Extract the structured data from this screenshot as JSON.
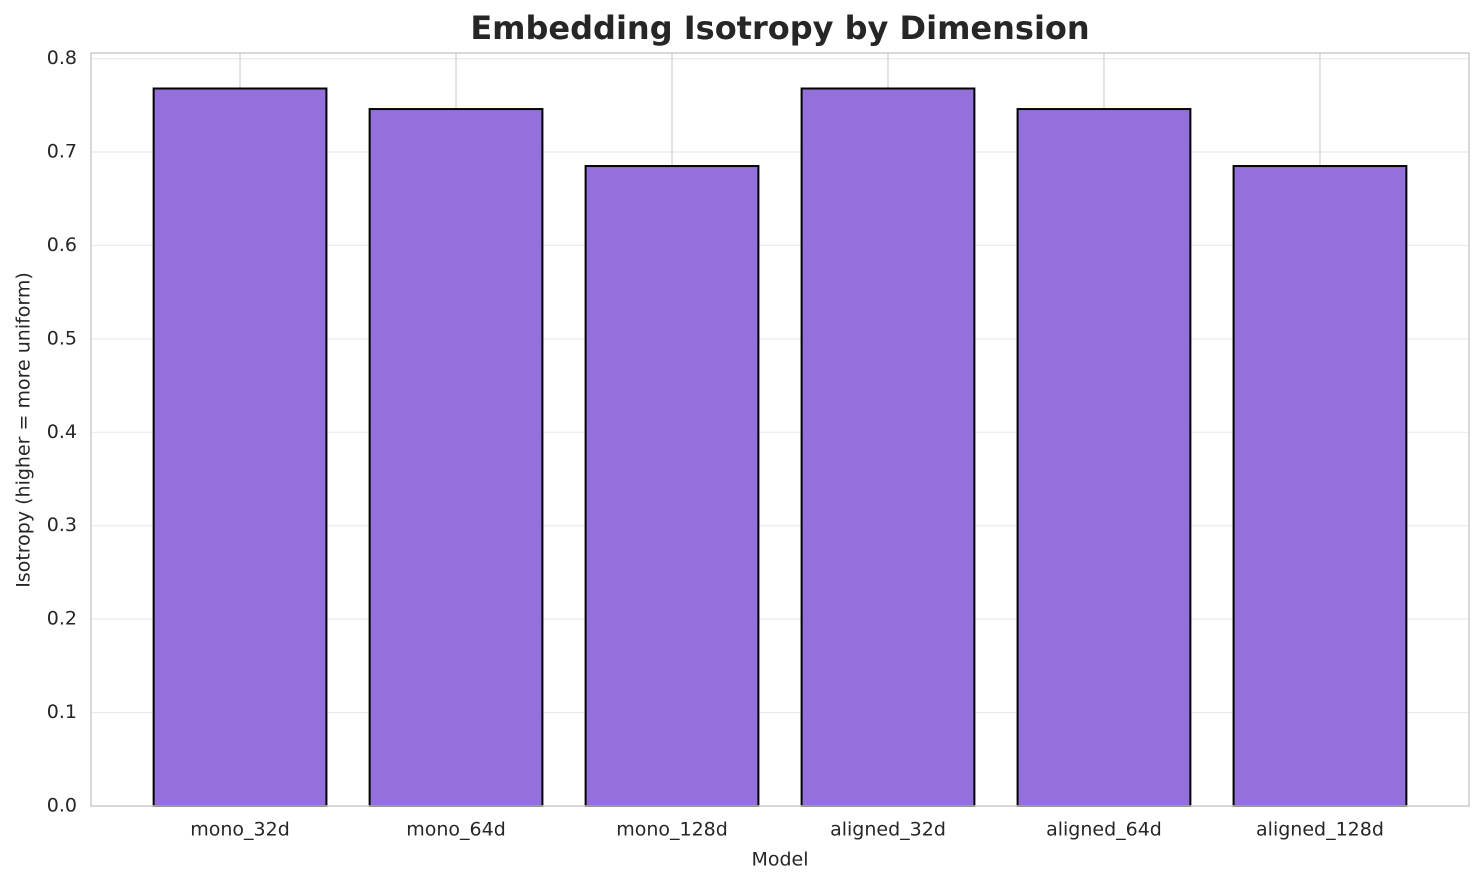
{
  "chart_data": {
    "type": "bar",
    "title": "Embedding Isotropy by Dimension",
    "x_label": "Model",
    "y_label": "Isotropy (higher = more uniform)",
    "categories": [
      "mono_32d",
      "mono_64d",
      "mono_128d",
      "aligned_32d",
      "aligned_64d",
      "aligned_128d"
    ],
    "values": [
      0.768,
      0.746,
      0.685,
      0.768,
      0.746,
      0.685
    ],
    "color": "#9370db",
    "edgecolor": "#000000",
    "ylim": [
      0,
      0.806
    ],
    "yticks": [
      {
        "value": 0,
        "label": "0.0"
      },
      0.1,
      0.2,
      0.3,
      0.4,
      0.5,
      0.6,
      0.7,
      0.8
    ],
    "grid": true
  }
}
